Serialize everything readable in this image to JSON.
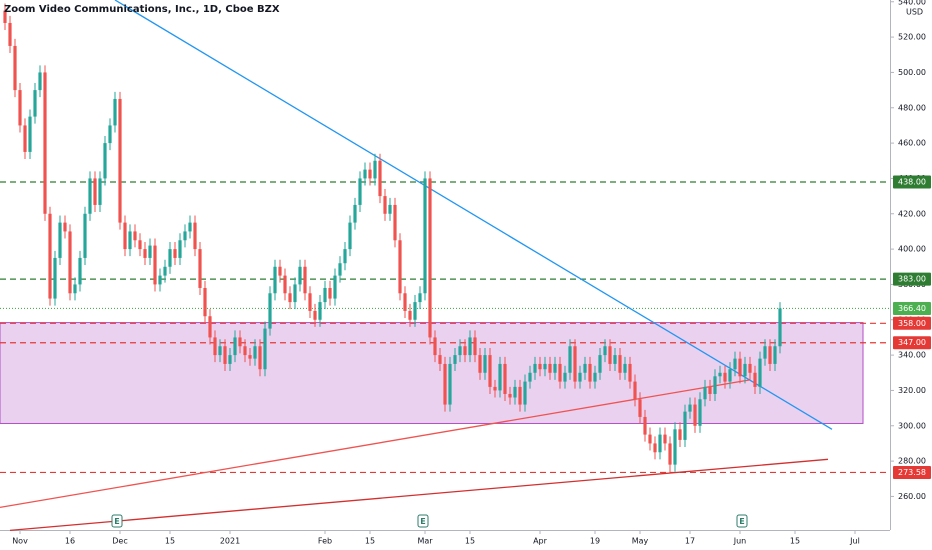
{
  "chart_data": {
    "type": "candlestick",
    "title": "Zoom Video Communications, Inc., 1D, Cboe BZX",
    "currency": "USD",
    "up_color": "#26a69a",
    "down_color": "#ef5350",
    "xlim": [
      -4,
      174
    ],
    "ylim": [
      241,
      541
    ],
    "yticks": [
      {
        "value": 260,
        "label": "260.00"
      },
      {
        "value": 280,
        "label": "280.00"
      },
      {
        "value": 300,
        "label": "300.00"
      },
      {
        "value": 320,
        "label": "320.00"
      },
      {
        "value": 340,
        "label": "340.00"
      },
      {
        "value": 360,
        "label": "360.00"
      },
      {
        "value": 380,
        "label": "380.00"
      },
      {
        "value": 400,
        "label": "400.00"
      },
      {
        "value": 420,
        "label": "420.00"
      },
      {
        "value": 440,
        "label": "440.00"
      },
      {
        "value": 460,
        "label": "460.00"
      },
      {
        "value": 480,
        "label": "480.00"
      },
      {
        "value": 500,
        "label": "500.00"
      },
      {
        "value": 520,
        "label": "520.00"
      },
      {
        "value": 540,
        "label": "540.00"
      }
    ],
    "xticks": [
      {
        "value": 0,
        "label": "Nov"
      },
      {
        "value": 10,
        "label": "16"
      },
      {
        "value": 20,
        "label": "Dec"
      },
      {
        "value": 30,
        "label": "15"
      },
      {
        "value": 42,
        "label": "2021"
      },
      {
        "value": 61,
        "label": "Feb"
      },
      {
        "value": 70,
        "label": "15"
      },
      {
        "value": 81,
        "label": "Mar"
      },
      {
        "value": 90,
        "label": "15"
      },
      {
        "value": 104,
        "label": "Apr"
      },
      {
        "value": 115,
        "label": "19"
      },
      {
        "value": 124,
        "label": "May"
      },
      {
        "value": 134,
        "label": "17"
      },
      {
        "value": 144,
        "label": "Jun"
      },
      {
        "value": 155,
        "label": "15"
      },
      {
        "value": 167,
        "label": "Jul"
      }
    ],
    "x": [
      -3,
      -2,
      -1,
      0,
      1,
      2,
      3,
      4,
      5,
      6,
      7,
      8,
      9,
      10,
      11,
      12,
      13,
      14,
      15,
      16,
      17,
      18,
      19,
      20,
      21,
      22,
      23,
      24,
      25,
      26,
      27,
      28,
      29,
      30,
      31,
      32,
      33,
      34,
      35,
      36,
      37,
      38,
      39,
      40,
      41,
      42,
      43,
      44,
      45,
      46,
      47,
      48,
      49,
      50,
      51,
      52,
      53,
      54,
      55,
      56,
      57,
      58,
      59,
      60,
      61,
      62,
      63,
      64,
      65,
      66,
      67,
      68,
      69,
      70,
      71,
      72,
      73,
      74,
      75,
      76,
      77,
      78,
      79,
      80,
      81,
      82,
      83,
      84,
      85,
      86,
      87,
      88,
      89,
      90,
      91,
      92,
      93,
      94,
      95,
      96,
      97,
      98,
      99,
      100,
      101,
      102,
      103,
      104,
      105,
      106,
      107,
      108,
      109,
      110,
      111,
      112,
      113,
      114,
      115,
      116,
      117,
      118,
      119,
      120,
      121,
      122,
      123,
      124,
      125,
      126,
      127,
      128,
      129,
      130,
      131,
      132,
      133,
      134,
      135,
      136,
      137,
      138,
      139,
      140,
      141,
      142,
      143,
      144,
      145,
      146,
      147,
      148,
      149,
      150,
      151,
      152
    ],
    "candles": [
      [
        535,
        539,
        524,
        528
      ],
      [
        528,
        532,
        511,
        515
      ],
      [
        515,
        519,
        486,
        490
      ],
      [
        490,
        494,
        466,
        470
      ],
      [
        470,
        474,
        451,
        455
      ],
      [
        455,
        479,
        451,
        475
      ],
      [
        475,
        494,
        471,
        490
      ],
      [
        490,
        504,
        486,
        500
      ],
      [
        500,
        504,
        416,
        420
      ],
      [
        420,
        424,
        368,
        372
      ],
      [
        372,
        399,
        368,
        395
      ],
      [
        395,
        419,
        391,
        415
      ],
      [
        415,
        419,
        406,
        410
      ],
      [
        410,
        414,
        371,
        375
      ],
      [
        375,
        384,
        371,
        380
      ],
      [
        380,
        399,
        376,
        395
      ],
      [
        395,
        424,
        391,
        420
      ],
      [
        420,
        444,
        416,
        440
      ],
      [
        440,
        444,
        421,
        425
      ],
      [
        425,
        444,
        421,
        440
      ],
      [
        440,
        464,
        436,
        460
      ],
      [
        460,
        474,
        456,
        470
      ],
      [
        470,
        489,
        466,
        485
      ],
      [
        485,
        489,
        411,
        415
      ],
      [
        415,
        419,
        396,
        400
      ],
      [
        400,
        414,
        396,
        410
      ],
      [
        410,
        414,
        401,
        405
      ],
      [
        405,
        409,
        396,
        400
      ],
      [
        400,
        404,
        391,
        395
      ],
      [
        395,
        406,
        391,
        402
      ],
      [
        402,
        406,
        376,
        380
      ],
      [
        380,
        389,
        376,
        385
      ],
      [
        385,
        394,
        381,
        390
      ],
      [
        390,
        404,
        386,
        400
      ],
      [
        400,
        404,
        391,
        395
      ],
      [
        395,
        409,
        391,
        405
      ],
      [
        405,
        414,
        401,
        410
      ],
      [
        410,
        419,
        406,
        415
      ],
      [
        415,
        419,
        396,
        400
      ],
      [
        400,
        404,
        374,
        378
      ],
      [
        378,
        382,
        358,
        362
      ],
      [
        362,
        366,
        346,
        350
      ],
      [
        350,
        354,
        336,
        340
      ],
      [
        340,
        349,
        336,
        345
      ],
      [
        345,
        349,
        331,
        335
      ],
      [
        335,
        344,
        331,
        340
      ],
      [
        340,
        354,
        336,
        350
      ],
      [
        350,
        354,
        341,
        345
      ],
      [
        345,
        349,
        336,
        340
      ],
      [
        340,
        344,
        334,
        338
      ],
      [
        338,
        349,
        334,
        345
      ],
      [
        345,
        349,
        328,
        332
      ],
      [
        332,
        359,
        328,
        355
      ],
      [
        355,
        379,
        351,
        375
      ],
      [
        375,
        394,
        371,
        390
      ],
      [
        390,
        394,
        381,
        385
      ],
      [
        385,
        389,
        371,
        375
      ],
      [
        375,
        379,
        366,
        370
      ],
      [
        370,
        384,
        366,
        380
      ],
      [
        380,
        394,
        376,
        390
      ],
      [
        390,
        394,
        371,
        375
      ],
      [
        375,
        379,
        361,
        365
      ],
      [
        365,
        369,
        356,
        360
      ],
      [
        360,
        374,
        356,
        370
      ],
      [
        370,
        382,
        366,
        378
      ],
      [
        378,
        382,
        368,
        372
      ],
      [
        372,
        389,
        368,
        385
      ],
      [
        385,
        396,
        381,
        392
      ],
      [
        392,
        404,
        388,
        400
      ],
      [
        400,
        419,
        396,
        415
      ],
      [
        415,
        429,
        411,
        425
      ],
      [
        425,
        444,
        421,
        440
      ],
      [
        440,
        449,
        436,
        445
      ],
      [
        445,
        449,
        436,
        440
      ],
      [
        440,
        454,
        436,
        450
      ],
      [
        450,
        454,
        426,
        430
      ],
      [
        430,
        434,
        416,
        420
      ],
      [
        420,
        429,
        416,
        425
      ],
      [
        425,
        429,
        401,
        405
      ],
      [
        405,
        409,
        371,
        375
      ],
      [
        375,
        379,
        361,
        365
      ],
      [
        365,
        369,
        356,
        360
      ],
      [
        360,
        374,
        356,
        370
      ],
      [
        370,
        379,
        366,
        375
      ],
      [
        375,
        444,
        371,
        440
      ],
      [
        440,
        444,
        346,
        350
      ],
      [
        350,
        354,
        336,
        340
      ],
      [
        340,
        344,
        331,
        335
      ],
      [
        335,
        339,
        308,
        312
      ],
      [
        312,
        339,
        308,
        335
      ],
      [
        335,
        344,
        331,
        340
      ],
      [
        340,
        349,
        336,
        345
      ],
      [
        345,
        349,
        336,
        340
      ],
      [
        340,
        354,
        336,
        350
      ],
      [
        350,
        354,
        336,
        340
      ],
      [
        340,
        344,
        326,
        330
      ],
      [
        330,
        344,
        326,
        340
      ],
      [
        340,
        344,
        318,
        322
      ],
      [
        322,
        326,
        316,
        320
      ],
      [
        320,
        339,
        316,
        335
      ],
      [
        335,
        339,
        314,
        318
      ],
      [
        318,
        322,
        312,
        316
      ],
      [
        316,
        326,
        312,
        322
      ],
      [
        322,
        326,
        308,
        312
      ],
      [
        312,
        329,
        308,
        325
      ],
      [
        325,
        334,
        321,
        330
      ],
      [
        330,
        339,
        326,
        335
      ],
      [
        335,
        339,
        328,
        332
      ],
      [
        332,
        339,
        328,
        335
      ],
      [
        335,
        339,
        326,
        330
      ],
      [
        330,
        339,
        326,
        335
      ],
      [
        335,
        339,
        321,
        325
      ],
      [
        325,
        334,
        321,
        330
      ],
      [
        330,
        349,
        326,
        345
      ],
      [
        345,
        349,
        321,
        325
      ],
      [
        325,
        334,
        321,
        330
      ],
      [
        330,
        339,
        326,
        335
      ],
      [
        335,
        339,
        321,
        325
      ],
      [
        325,
        334,
        321,
        330
      ],
      [
        330,
        344,
        326,
        340
      ],
      [
        340,
        349,
        336,
        345
      ],
      [
        345,
        349,
        331,
        335
      ],
      [
        335,
        344,
        331,
        340
      ],
      [
        340,
        344,
        326,
        330
      ],
      [
        330,
        339,
        326,
        335
      ],
      [
        335,
        339,
        321,
        325
      ],
      [
        325,
        329,
        311,
        315
      ],
      [
        315,
        319,
        301,
        305
      ],
      [
        305,
        309,
        291,
        295
      ],
      [
        295,
        299,
        286,
        290
      ],
      [
        290,
        294,
        281,
        285
      ],
      [
        285,
        299,
        281,
        295
      ],
      [
        295,
        299,
        286,
        290
      ],
      [
        290,
        294,
        273.58,
        278
      ],
      [
        278,
        302,
        274,
        298
      ],
      [
        298,
        302,
        288,
        292
      ],
      [
        292,
        312,
        288,
        308
      ],
      [
        308,
        316,
        304,
        312
      ],
      [
        312,
        316,
        296,
        300
      ],
      [
        300,
        319,
        296,
        315
      ],
      [
        315,
        326,
        311,
        322
      ],
      [
        322,
        326,
        314,
        318
      ],
      [
        318,
        332,
        314,
        328
      ],
      [
        328,
        334,
        324,
        330
      ],
      [
        330,
        334,
        321,
        325
      ],
      [
        325,
        336,
        321,
        332
      ],
      [
        332,
        342,
        328,
        338
      ],
      [
        338,
        342,
        324,
        328
      ],
      [
        328,
        339,
        324,
        335
      ],
      [
        335,
        339,
        326,
        330
      ],
      [
        330,
        334,
        318,
        322
      ],
      [
        322,
        342,
        318,
        338
      ],
      [
        338,
        349,
        334,
        345
      ],
      [
        345,
        349,
        331,
        335
      ],
      [
        335,
        349,
        331,
        345
      ],
      [
        345,
        370,
        341,
        366.4
      ]
    ],
    "zone": {
      "x": [
        -4,
        168.6
      ],
      "y": [
        301.3,
        358.4
      ],
      "fill": "#e6c6ec",
      "stroke": "#b04fc4"
    },
    "trendlines": [
      {
        "x": [
          19,
          162.4
        ],
        "y": [
          541,
          298
        ],
        "color": "#2196f3"
      },
      {
        "x": [
          -4,
          146
        ],
        "y": [
          253.8,
          326
        ],
        "color": "#ef5350"
      },
      {
        "x": [
          -2,
          161.6
        ],
        "y": [
          240.8,
          281
        ],
        "color": "#d32f2f"
      }
    ],
    "levels": [
      {
        "value": 438,
        "label": "438.00",
        "color": "#2e7d32",
        "dash": "6,4"
      },
      {
        "value": 383,
        "label": "383.00",
        "color": "#2e7d32",
        "dash": "6,4"
      },
      {
        "value": 366.4,
        "label": "366.40",
        "color": "#4caf50",
        "dash": "1,2"
      },
      {
        "value": 358,
        "label": "358.00",
        "color": "#e53935",
        "dash": "6,4"
      },
      {
        "value": 347,
        "label": "347.00",
        "color": "#e53935",
        "dash": "6,4"
      },
      {
        "value": 273.58,
        "label": "273.58",
        "color": "#e53935",
        "dash": "6,4"
      }
    ],
    "events": [
      {
        "x": 19.4,
        "label": "E"
      },
      {
        "x": 80.6,
        "label": "E"
      },
      {
        "x": 144.4,
        "label": "E"
      }
    ]
  }
}
